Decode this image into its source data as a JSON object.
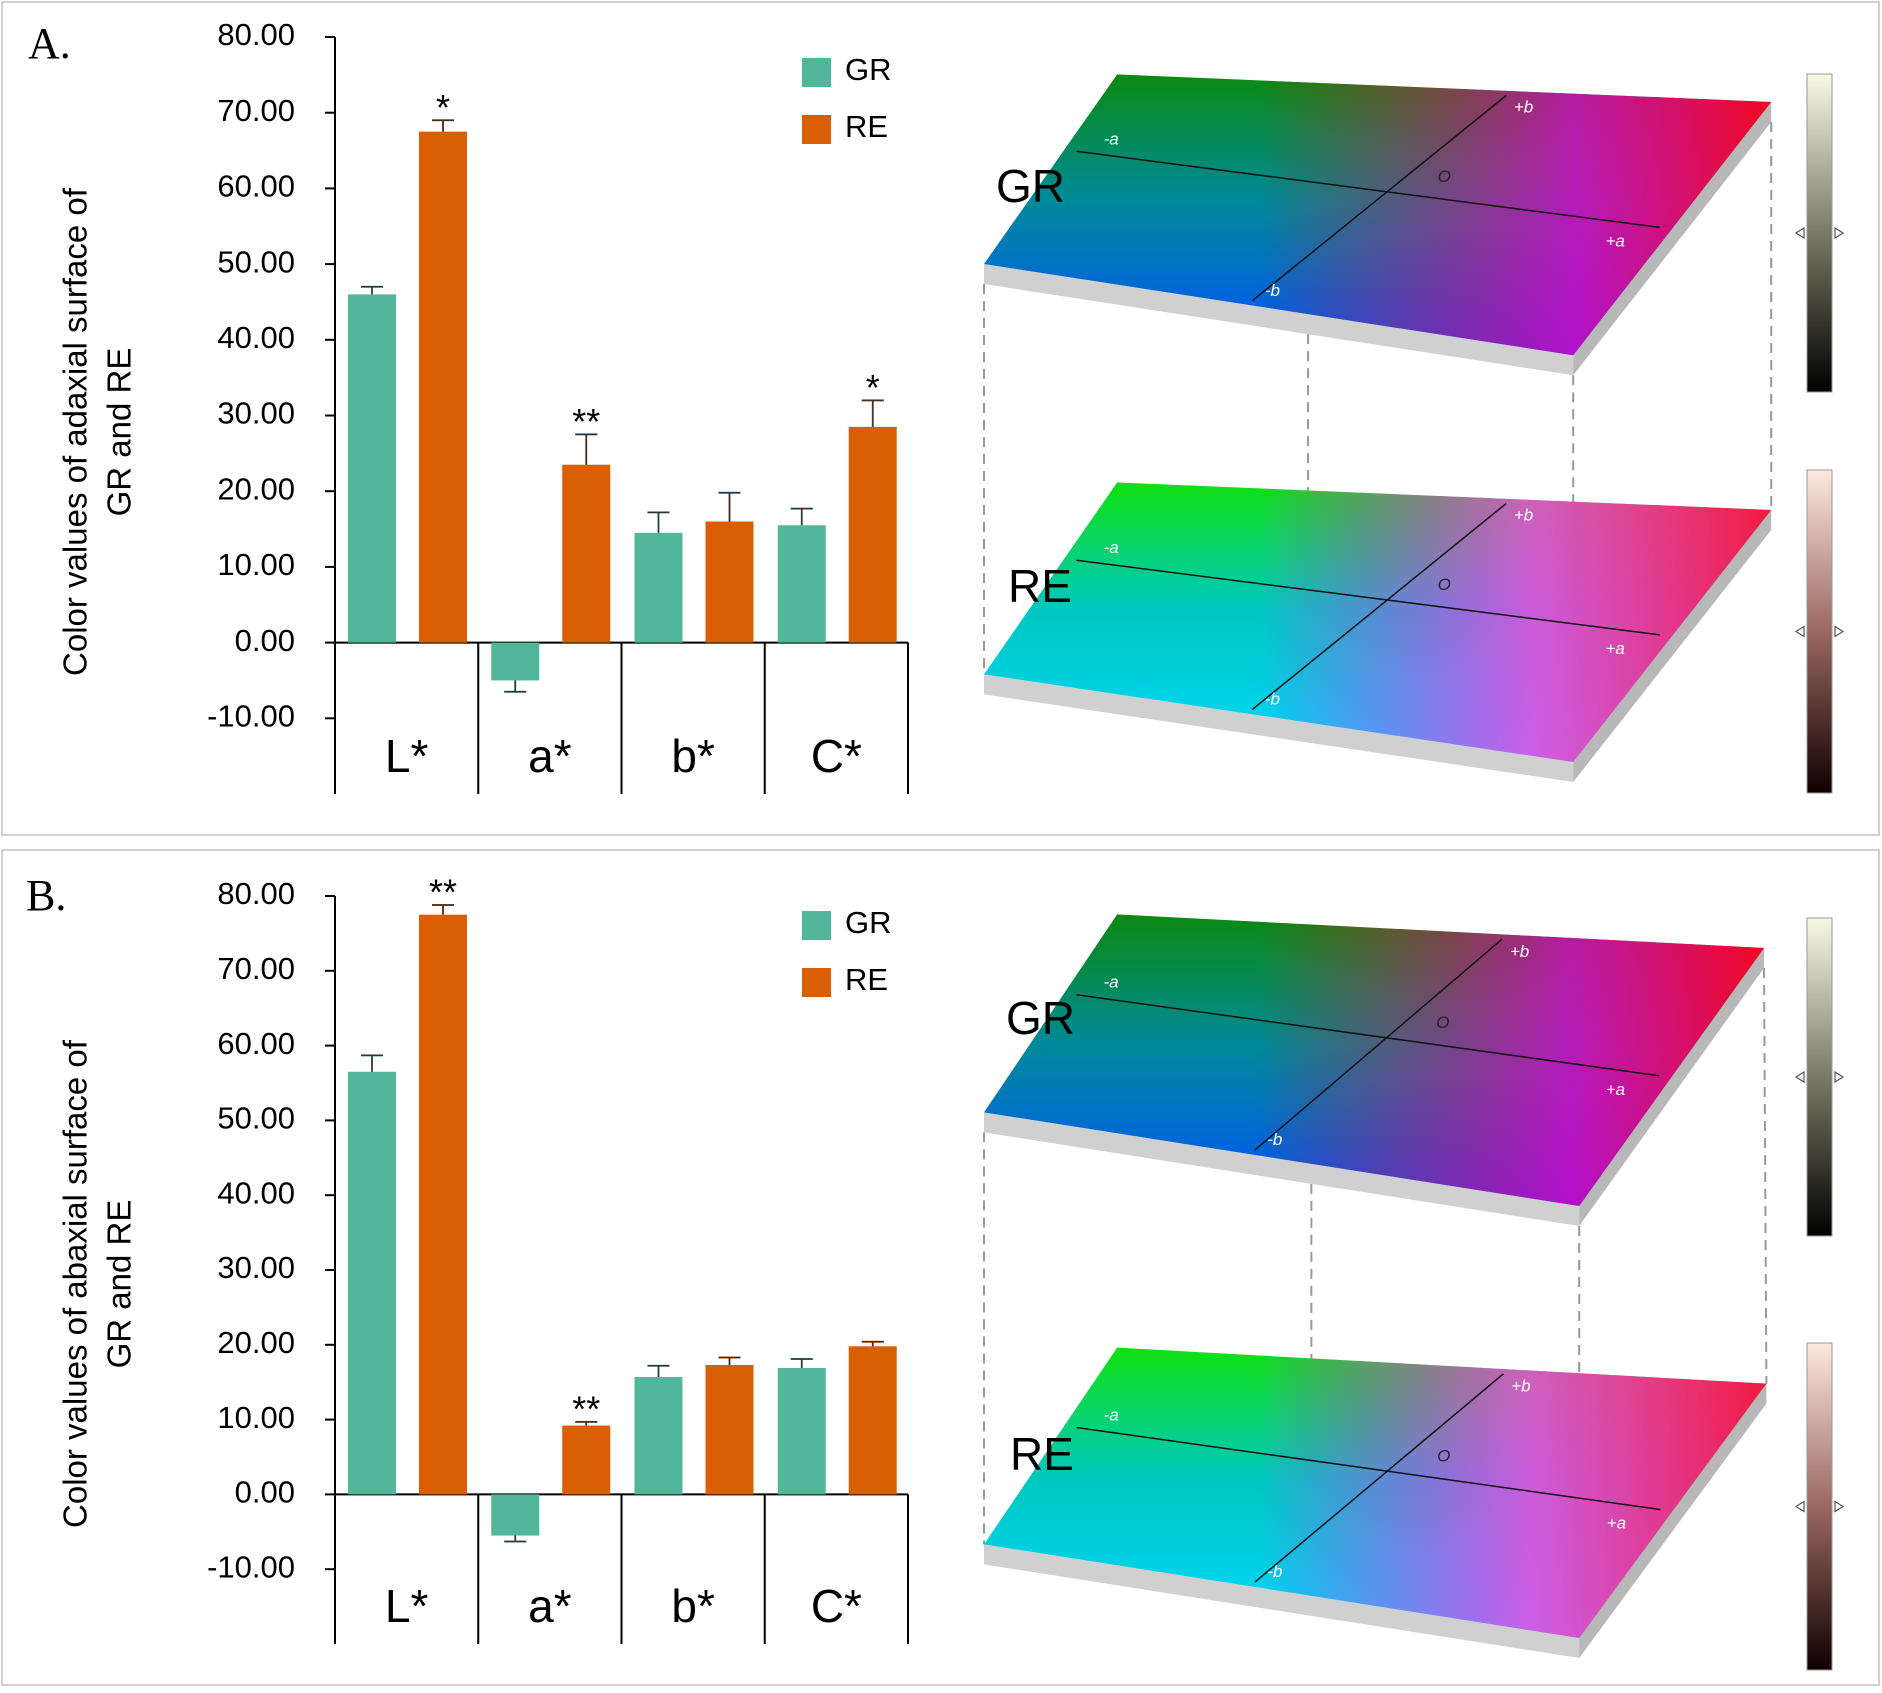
{
  "panel_labels": [
    "A.",
    "B."
  ],
  "chart_data": [
    {
      "type": "bar",
      "y_label": [
        "Color values of adaxial surface of",
        "GR and RE"
      ],
      "categories": [
        "L*",
        "a*",
        "b*",
        "C*"
      ],
      "series": [
        {
          "name": "GR",
          "color": "#52b69a",
          "values": [
            46.0,
            -5.0,
            14.5,
            15.5
          ],
          "errors": [
            1.0,
            1.5,
            2.7,
            2.2
          ],
          "significance": [
            null,
            null,
            null,
            null
          ]
        },
        {
          "name": "RE",
          "color": "#d95f02",
          "values": [
            67.5,
            23.5,
            16.0,
            28.5
          ],
          "errors": [
            1.5,
            4.0,
            3.8,
            3.5
          ],
          "significance": [
            "*",
            "**",
            null,
            "*"
          ]
        }
      ],
      "ylim": [
        -20,
        80
      ],
      "yticks": [
        {
          "value": -10,
          "label": "-10.00"
        },
        {
          "value": 0,
          "label": "0.00"
        },
        {
          "value": 10,
          "label": "10.00"
        },
        {
          "value": 20,
          "label": "20.00"
        },
        {
          "value": 30,
          "label": "30.00"
        },
        {
          "value": 40,
          "label": "40.00"
        },
        {
          "value": 50,
          "label": "50.00"
        },
        {
          "value": 60,
          "label": "60.00"
        },
        {
          "value": 70,
          "label": "70.00"
        },
        {
          "value": 80,
          "label": "80.00"
        }
      ]
    },
    {
      "type": "bar",
      "y_label": [
        "Color values of abaxial surface of",
        "GR and RE"
      ],
      "categories": [
        "L*",
        "a*",
        "b*",
        "C*"
      ],
      "series": [
        {
          "name": "GR",
          "color": "#52b69a",
          "values": [
            56.5,
            -5.5,
            15.7,
            16.9
          ],
          "errors": [
            2.2,
            0.8,
            1.5,
            1.2
          ],
          "significance": [
            null,
            null,
            null,
            null
          ]
        },
        {
          "name": "RE",
          "color": "#d95f02",
          "values": [
            77.5,
            9.2,
            17.3,
            19.8
          ],
          "errors": [
            1.3,
            0.5,
            1.0,
            0.6
          ],
          "significance": [
            "**",
            "**",
            null,
            null
          ]
        }
      ],
      "ylim": [
        -20,
        80
      ],
      "yticks": [
        {
          "value": -10,
          "label": "-10.00"
        },
        {
          "value": 0,
          "label": "0.00"
        },
        {
          "value": 10,
          "label": "10.00"
        },
        {
          "value": 20,
          "label": "20.00"
        },
        {
          "value": 30,
          "label": "30.00"
        },
        {
          "value": 40,
          "label": "40.00"
        },
        {
          "value": 50,
          "label": "50.00"
        },
        {
          "value": 60,
          "label": "60.00"
        },
        {
          "value": 70,
          "label": "70.00"
        },
        {
          "value": 80,
          "label": "80.00"
        }
      ]
    }
  ],
  "illustrations": [
    {
      "planes": [
        "GR",
        "RE"
      ]
    },
    {
      "planes": [
        "GR",
        "RE"
      ]
    }
  ],
  "plane_axis_labels": [
    "-a",
    "+a",
    "+b",
    "-b",
    "O"
  ]
}
